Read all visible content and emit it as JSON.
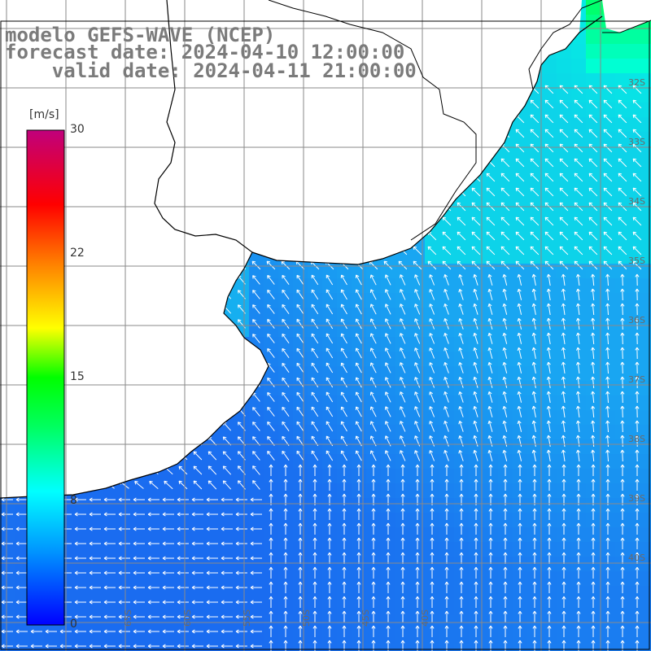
{
  "header": {
    "model": "modelo GEFS-WAVE (NCEP)",
    "forecast": "forecast date: 2024-04-10 12:00:00",
    "valid": "valid date: 2024-04-11 21:00:00"
  },
  "colorbar": {
    "units": "[m/s]",
    "ticks": [
      "30",
      "22",
      "15",
      "8",
      "0"
    ],
    "tick_values": [
      30,
      22,
      15,
      8,
      0
    ],
    "range": [
      0,
      30
    ],
    "stops": [
      "#0000ff",
      "#00a0ff",
      "#00ffff",
      "#00ff60",
      "#00ff00",
      "#ffff00",
      "#ff8000",
      "#ff0000",
      "#c0007c"
    ]
  },
  "map": {
    "field": "wind speed with direction arrows",
    "ocean_colors": {
      "low": "#1a6cf0",
      "mid": "#19a6f2",
      "high": "#00ffe0",
      "peak": "#00ff60"
    },
    "land_color": "#ffffff",
    "grid_color": "#808080",
    "coast_color": "#000000",
    "arrow_color": "#ffffff",
    "lon_labels": [
      "65S",
      "60S",
      "55S",
      "50S",
      "45S",
      "40S"
    ],
    "lat_labels": [
      "32S",
      "33S",
      "34S",
      "35S",
      "36S",
      "37S",
      "38S",
      "39S",
      "40S"
    ]
  }
}
